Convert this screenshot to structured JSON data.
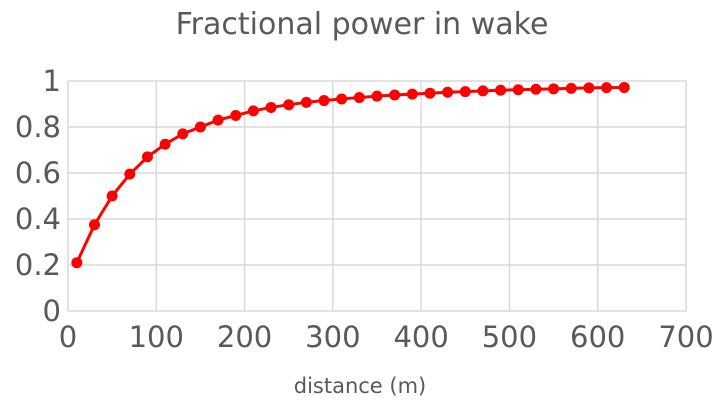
{
  "chart_data": {
    "type": "line",
    "title": "Fractional power in wake",
    "xlabel": "distance (m)",
    "ylabel": "",
    "xlim": [
      0,
      700
    ],
    "ylim": [
      0,
      1
    ],
    "x_ticks": [
      "0",
      "100",
      "200",
      "300",
      "400",
      "500",
      "600",
      "700"
    ],
    "y_ticks": [
      "0",
      "0.2",
      "0.4",
      "0.6",
      "0.8",
      "1"
    ],
    "grid": true,
    "legend": "none",
    "colors": {
      "series": "#ff0000",
      "grid": "#d9d9d9",
      "text": "#595959"
    },
    "series": [
      {
        "x": [
          10,
          30,
          50,
          70,
          90,
          110,
          130,
          150,
          170,
          190,
          210,
          230,
          250,
          270,
          290,
          310,
          330,
          350,
          370,
          390,
          410,
          430,
          450,
          470,
          490,
          510,
          530,
          550,
          570,
          590,
          610,
          630
        ],
        "values": [
          0.21,
          0.375,
          0.5,
          0.595,
          0.67,
          0.725,
          0.77,
          0.8,
          0.83,
          0.85,
          0.87,
          0.885,
          0.897,
          0.907,
          0.915,
          0.922,
          0.928,
          0.934,
          0.939,
          0.943,
          0.947,
          0.951,
          0.954,
          0.957,
          0.96,
          0.962,
          0.964,
          0.966,
          0.968,
          0.97,
          0.971,
          0.972
        ]
      }
    ]
  }
}
